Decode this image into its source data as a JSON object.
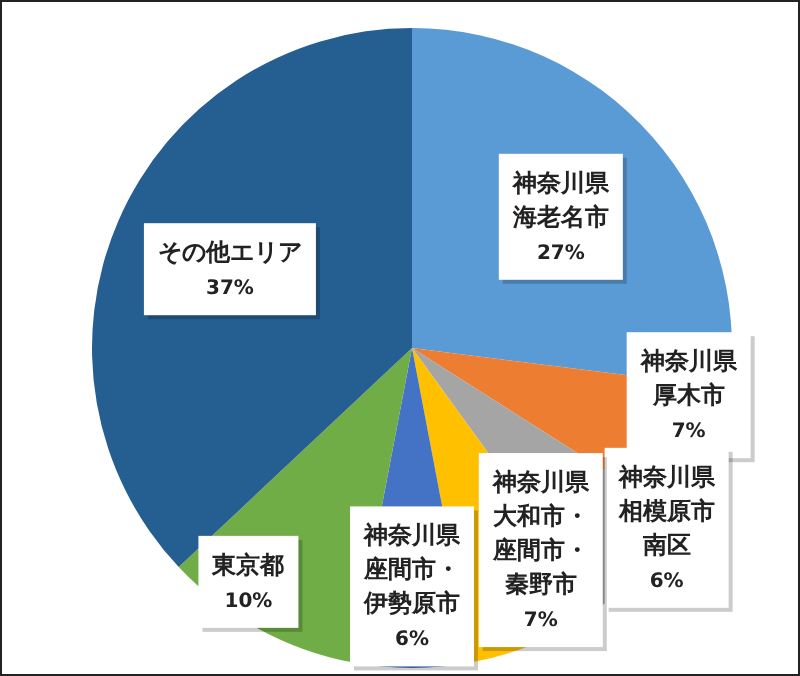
{
  "chart_data": {
    "type": "pie",
    "categories": [
      "神奈川県海老名市",
      "神奈川県厚木市",
      "神奈川県相模原市南区",
      "神奈川県大和市・座間市・秦野市",
      "神奈川県座間市・伊勢原市",
      "東京都",
      "その他エリア"
    ],
    "values": [
      27,
      7,
      6,
      7,
      6,
      10,
      37
    ],
    "value_labels": [
      "27%",
      "7%",
      "6%",
      "7%",
      "6%",
      "10%",
      "37%"
    ],
    "colors": [
      "#5b9bd5",
      "#ed7d31",
      "#a5a5a5",
      "#ffc000",
      "#4472c4",
      "#70ad47",
      "#255e91"
    ],
    "legend": false
  }
}
